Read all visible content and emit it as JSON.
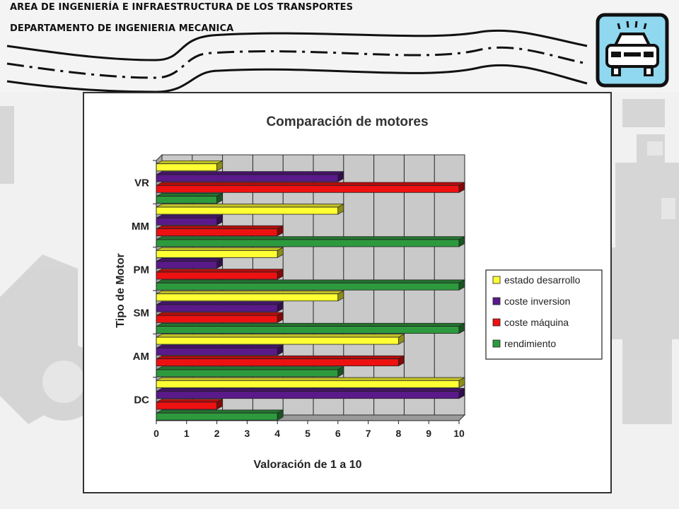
{
  "header": {
    "line1": "AREA DE INGENIERÍA E INFRAESTRUCTURA DE LOS TRANSPORTES",
    "line2": "DEPARTAMENTO DE INGENIERIA MECANICA"
  },
  "logo": {
    "icon": "car-icon",
    "background": "#8fd8f0"
  },
  "chart_data": {
    "type": "bar",
    "orientation": "horizontal",
    "title": "Comparación de motores",
    "xlabel": "Valoración de 1 a 10",
    "ylabel": "Tipo de Motor",
    "categories": [
      "VR",
      "MM",
      "PM",
      "SM",
      "AM",
      "DC"
    ],
    "xlim": [
      0,
      10
    ],
    "xticks": [
      "0",
      "1",
      "2",
      "3",
      "4",
      "5",
      "6",
      "7",
      "8",
      "9",
      "10"
    ],
    "grid": true,
    "legend_position": "right",
    "series": [
      {
        "name": "estado desarrollo",
        "color": "#ffff33",
        "values": [
          2,
          6,
          4,
          6,
          8,
          10
        ]
      },
      {
        "name": "coste inversion",
        "color": "#5a1a8a",
        "values": [
          6,
          2,
          2,
          4,
          4,
          10
        ]
      },
      {
        "name": "coste máquina",
        "color": "#ee1111",
        "values": [
          10,
          4,
          4,
          4,
          8,
          2
        ]
      },
      {
        "name": "rendimiento",
        "color": "#2e9a3e",
        "values": [
          2,
          10,
          10,
          10,
          6,
          4
        ]
      }
    ]
  }
}
